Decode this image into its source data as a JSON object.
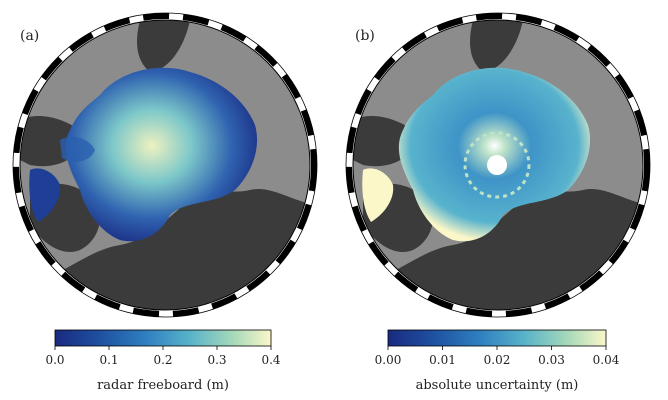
{
  "panels": [
    {
      "id": "a",
      "label": "(a)",
      "colorbar": {
        "title": "radar freeboard (m)",
        "ticks": [
          "0.0",
          "0.1",
          "0.2",
          "0.3",
          "0.4"
        ],
        "range": [
          0.0,
          0.4
        ]
      }
    },
    {
      "id": "b",
      "label": "(b)",
      "colorbar": {
        "title": "absolute uncertainty (m)",
        "ticks": [
          "0.00",
          "0.01",
          "0.02",
          "0.03",
          "0.04"
        ],
        "range": [
          0.0,
          0.04
        ]
      }
    }
  ],
  "colors": {
    "ocean": "#8c8c8c",
    "land": "#3b3b3b",
    "colormap": [
      "#1a2a80",
      "#1e4fa0",
      "#2f7fc0",
      "#56b2c9",
      "#a4d8b9",
      "#fbf7c8"
    ]
  }
}
